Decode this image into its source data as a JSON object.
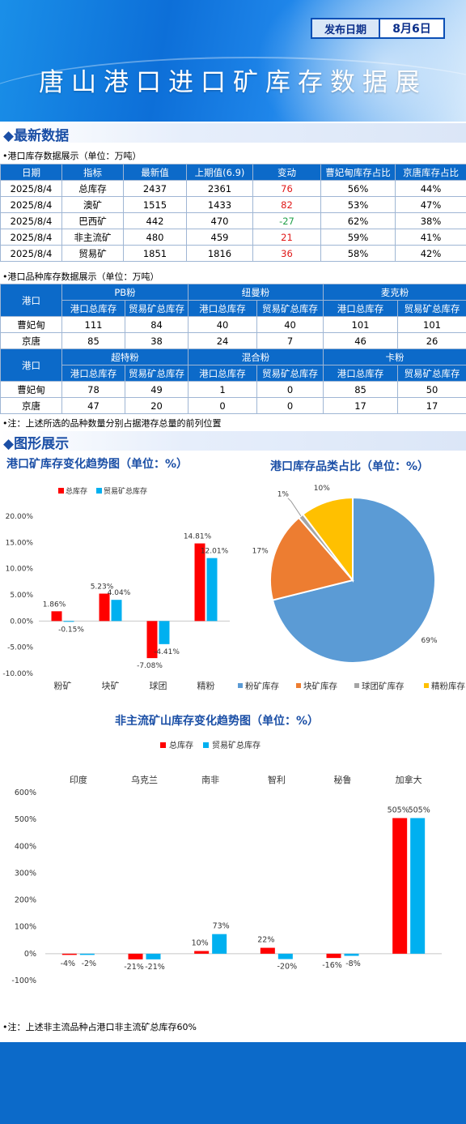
{
  "header": {
    "date_label": "发布日期",
    "date_value": "8月6日",
    "title": "唐山港口进口矿库存数据展"
  },
  "section_latest": {
    "heading": "最新数据",
    "table1_caption": "港口库存数据展示（单位：万吨）",
    "table1_headers": [
      "日期",
      "指标",
      "最新值",
      "上期值(6.9)",
      "变动",
      "曹妃甸库存占比",
      "京唐库存占比"
    ],
    "table1_rows": [
      [
        "2025/8/4",
        "总库存",
        "2437",
        "2361",
        "76",
        "56%",
        "44%"
      ],
      [
        "2025/8/4",
        "澳矿",
        "1515",
        "1433",
        "82",
        "53%",
        "47%"
      ],
      [
        "2025/8/4",
        "巴西矿",
        "442",
        "470",
        "-27",
        "62%",
        "38%"
      ],
      [
        "2025/8/4",
        "非主流矿",
        "480",
        "459",
        "21",
        "59%",
        "41%"
      ],
      [
        "2025/8/4",
        "贸易矿",
        "1851",
        "1816",
        "36",
        "58%",
        "42%"
      ]
    ],
    "table2_caption": "港口品种库存数据展示（单位：万吨）",
    "port_label": "港口",
    "sub_headers": [
      "港口总库存",
      "贸易矿总库存"
    ],
    "group1": [
      "PB粉",
      "纽曼粉",
      "麦克粉"
    ],
    "group1_rows": [
      [
        "曹妃甸",
        "111",
        "84",
        "40",
        "40",
        "101",
        "101"
      ],
      [
        "京唐",
        "85",
        "38",
        "24",
        "7",
        "46",
        "26"
      ]
    ],
    "group2": [
      "超特粉",
      "混合粉",
      "卡粉"
    ],
    "group2_rows": [
      [
        "曹妃甸",
        "78",
        "49",
        "1",
        "0",
        "85",
        "50"
      ],
      [
        "京唐",
        "47",
        "20",
        "0",
        "0",
        "17",
        "17"
      ]
    ],
    "note": "注：上述所选的品种数量分别占据港存总量的前列位置"
  },
  "section_charts": {
    "heading": "图形展示",
    "bar_title": "港口矿库存变化趋势图（单位：%）",
    "pie_title": "港口库存品类占比（单位：%）",
    "bar2_title": "非主流矿山库存变化趋势图（单位：%）",
    "note": "注：上述非主流品种占港口非主流矿总库存60%"
  },
  "colors": {
    "total": "#ff0000",
    "trade": "#00b0f0",
    "powder": "#5b9bd5",
    "lump": "#ed7d31",
    "pellet": "#a5a5a5",
    "fines": "#ffc000",
    "header_blue": "#0c6ac9"
  },
  "chart_data": [
    {
      "type": "bar",
      "title": "港口矿库存变化趋势图（单位：%）",
      "categories": [
        "粉矿",
        "块矿",
        "球团",
        "精粉"
      ],
      "series": [
        {
          "name": "总库存",
          "values": [
            1.86,
            5.23,
            -7.08,
            14.81
          ],
          "labels": [
            "1.86%",
            "5.23%",
            "-7.08%",
            "14.81%"
          ]
        },
        {
          "name": "贸易矿总库存",
          "values": [
            -0.15,
            4.04,
            -4.41,
            12.01
          ],
          "labels": [
            "-0.15%",
            "4.04%",
            "-4.41%",
            "12.01%"
          ]
        }
      ],
      "yticks": [
        "20.00%",
        "15.00%",
        "10.00%",
        "5.00%",
        "0.00%",
        "-5.00%",
        "-10.00%"
      ],
      "ylim": [
        -10,
        20
      ],
      "legend": "top"
    },
    {
      "type": "pie",
      "title": "港口库存品类占比（单位：%）",
      "labels": [
        "粉矿库存",
        "块矿库存",
        "球团矿库存",
        "精粉库存"
      ],
      "values": [
        69,
        17,
        1,
        10
      ],
      "value_labels": [
        "69%",
        "17%",
        "1%",
        "10%"
      ],
      "legend": "bottom"
    },
    {
      "type": "bar",
      "title": "非主流矿山库存变化趋势图（单位：%）",
      "categories": [
        "印度",
        "乌克兰",
        "南非",
        "智利",
        "秘鲁",
        "加拿大"
      ],
      "series": [
        {
          "name": "总库存",
          "values": [
            -4,
            -21,
            10,
            22,
            -16,
            505
          ],
          "labels": [
            "-4%",
            "-21%",
            "10%",
            "22%",
            "-16%",
            "505%"
          ]
        },
        {
          "name": "贸易矿总库存",
          "values": [
            -2,
            -21,
            73,
            -20,
            -8,
            505
          ],
          "labels": [
            "-2%",
            "-21%",
            "73%",
            "-20%",
            "-8%",
            "505%"
          ]
        }
      ],
      "yticks": [
        "600%",
        "500%",
        "400%",
        "300%",
        "200%",
        "100%",
        "0%",
        "-100%"
      ],
      "ylim": [
        -100,
        600
      ],
      "legend": "top"
    }
  ]
}
